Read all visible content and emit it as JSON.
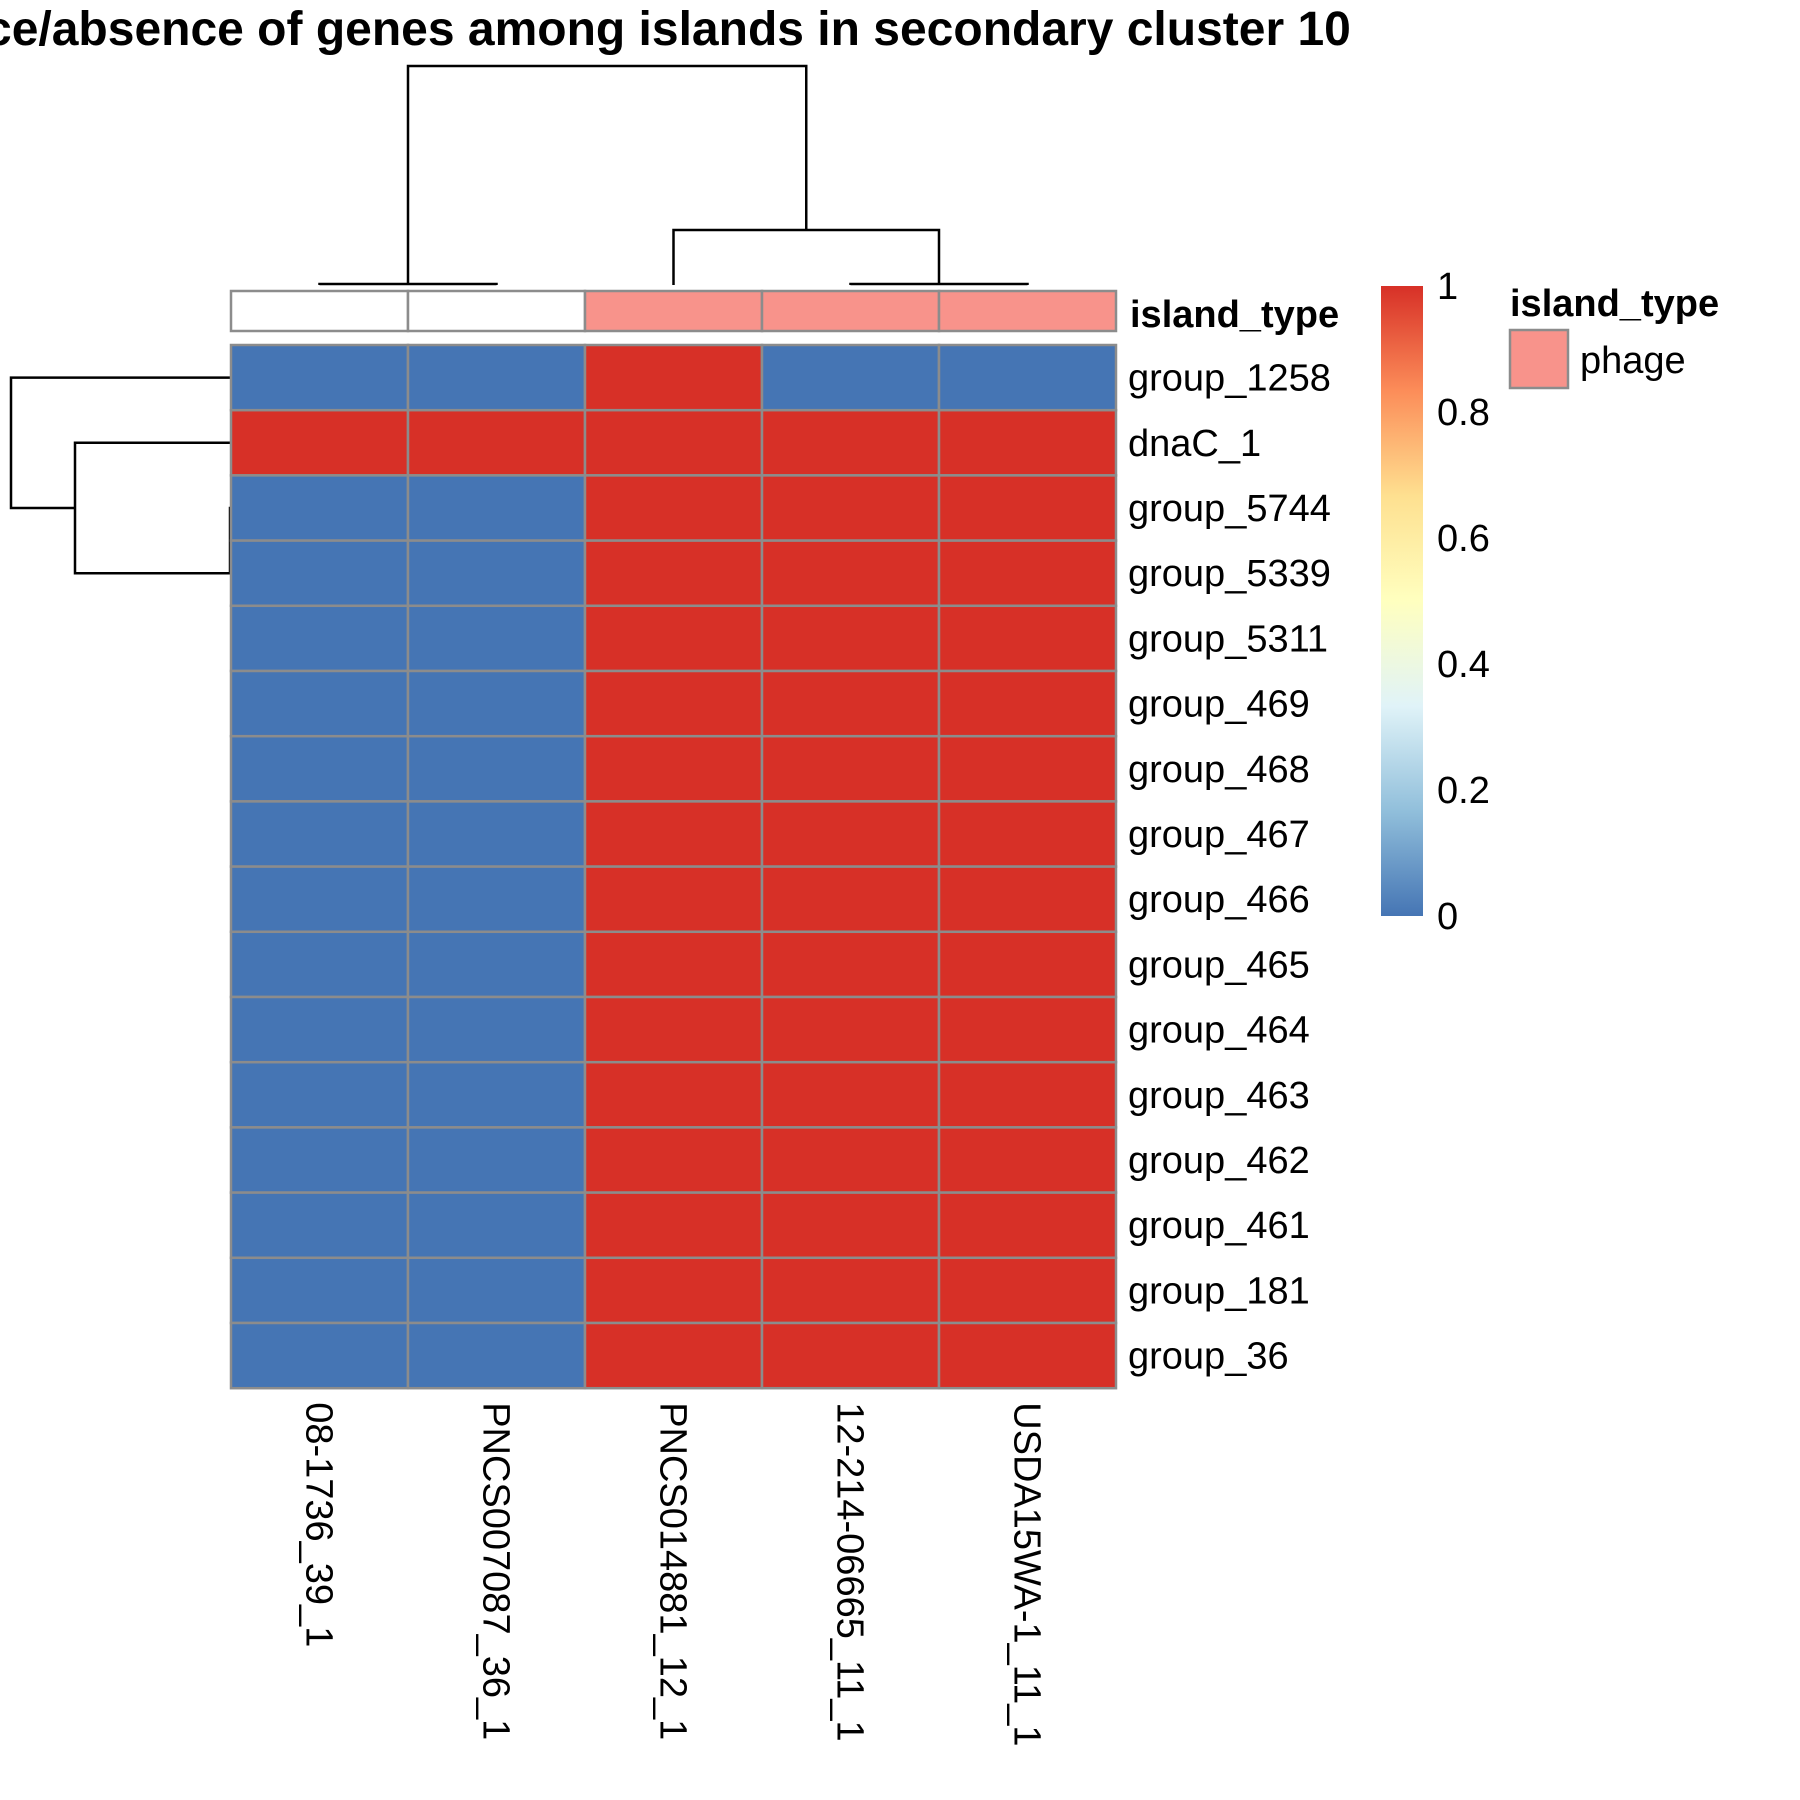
{
  "chart_data": {
    "type": "heatmap",
    "title": "ce/absence of genes among islands in secondary cluster 10",
    "columns": [
      "08-1736_39_1",
      "PNCS007087_36_1",
      "PNCS014881_12_1",
      "12-214-06665_11_1",
      "USDA15WA-1_11_1"
    ],
    "rows": [
      "group_1258",
      "dnaC_1",
      "group_5744",
      "group_5339",
      "group_5311",
      "group_469",
      "group_468",
      "group_467",
      "group_466",
      "group_465",
      "group_464",
      "group_463",
      "group_462",
      "group_461",
      "group_181",
      "group_36"
    ],
    "values": [
      [
        0,
        0,
        1,
        0,
        0
      ],
      [
        1,
        1,
        1,
        1,
        1
      ],
      [
        0,
        0,
        1,
        1,
        1
      ],
      [
        0,
        0,
        1,
        1,
        1
      ],
      [
        0,
        0,
        1,
        1,
        1
      ],
      [
        0,
        0,
        1,
        1,
        1
      ],
      [
        0,
        0,
        1,
        1,
        1
      ],
      [
        0,
        0,
        1,
        1,
        1
      ],
      [
        0,
        0,
        1,
        1,
        1
      ],
      [
        0,
        0,
        1,
        1,
        1
      ],
      [
        0,
        0,
        1,
        1,
        1
      ],
      [
        0,
        0,
        1,
        1,
        1
      ],
      [
        0,
        0,
        1,
        1,
        1
      ],
      [
        0,
        0,
        1,
        1,
        1
      ],
      [
        0,
        0,
        1,
        1,
        1
      ],
      [
        0,
        0,
        1,
        1,
        1
      ]
    ],
    "value_range": [
      0,
      1
    ],
    "colorscale": [
      "#4575b4",
      "#91bfdb",
      "#e0f3f8",
      "#ffffbf",
      "#fee090",
      "#fc8d59",
      "#d73027"
    ],
    "colorbar_ticks": [
      "0",
      "0.2",
      "0.4",
      "0.6",
      "0.8",
      "1"
    ],
    "column_annotation": {
      "name": "island_type",
      "values": [
        "",
        "",
        "phage",
        "phage",
        "phage"
      ],
      "colors": {
        "phage": "#f8938b"
      }
    },
    "legend": {
      "title": "island_type",
      "entries": [
        {
          "label": "phage",
          "color": "#f8938b"
        }
      ]
    },
    "column_dendrogram": true,
    "row_dendrogram": true
  }
}
